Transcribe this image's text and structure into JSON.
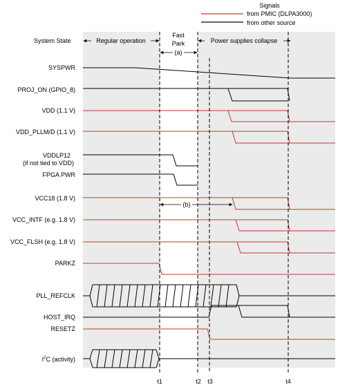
{
  "legend": {
    "title": "Signals",
    "pmic_label": "from PMIC (DLPA3000)",
    "other_label": "from other source",
    "pmic_color": "#c0392b",
    "other_color": "#000000"
  },
  "header": {
    "row_label": "System State",
    "regular_operation": "Regular operation",
    "fast_park_line1": "Fast",
    "fast_park_line2": "Park",
    "fast_park_marker": "(a)",
    "power_collapse": "Power supplies collapse"
  },
  "signals": {
    "syspwr": "SYSPWR",
    "proj_on": "PROJ_ON (GPIO_8)",
    "vdd": "VDD (1.1 V)",
    "vdd_pllm": "VDD_PLLM/D (1.1 V)",
    "vddlp12_line1": "VDDLP12",
    "vddlp12_line2": "(if not tied to VDD)",
    "fpga_pwr": "FPGA PWR",
    "vcc18": "VCC18 (1.8 V)",
    "vcc18_marker": "(b)",
    "vcc_intf": "VCC_INTF (e.g. 1.8 V)",
    "vcc_flsh": "VCC_FLSH (e.g. 1.8 V)",
    "parkz": "PARKZ",
    "pll_refclk": "PLL_REFCLK",
    "host_irq": "HOST_IRQ",
    "resetz": "RESETZ",
    "i2c_prefix": "I",
    "i2c_sup": "2",
    "i2c_suffix": "C (activity)"
  },
  "time_markers": [
    "t1",
    "t2",
    "t3",
    "t4"
  ],
  "colors": {
    "shade": "#ebebeb",
    "pmic": "#c0392b",
    "other": "#000000"
  }
}
